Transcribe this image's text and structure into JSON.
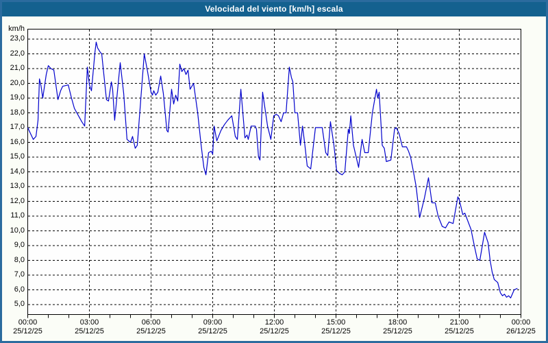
{
  "window": {
    "title": "Velocidad del viento [km/h] escala"
  },
  "colors": {
    "titlebar_bg": "#14618f",
    "titlebar_text": "#ffffff",
    "window_border": "#2b6b9e",
    "window_bg": "#fbfdf7",
    "plot_bg": "#fefefe",
    "grid": "#000000",
    "line": "#0000cc"
  },
  "chart_data": {
    "type": "line",
    "title": "Velocidad del viento [km/h] escala",
    "unit_label": "km/h",
    "xlabel": "",
    "ylabel": "km/h",
    "ylim": [
      5,
      23
    ],
    "y_tick_step": 1,
    "y_tick_labels": [
      "23,0",
      "22,0",
      "21,0",
      "20,0",
      "19,0",
      "18,0",
      "17,0",
      "16,0",
      "15,0",
      "14,0",
      "13,0",
      "12,0",
      "11,0",
      "10,0",
      "9,0",
      "8,0",
      "7,0",
      "6,0",
      "5,0"
    ],
    "x_range_hours": [
      0,
      24
    ],
    "x_major_ticks_hours": [
      0,
      3,
      6,
      9,
      12,
      15,
      18,
      21,
      24
    ],
    "x_minor_tick_every_hours": 1,
    "x_tick_labels": [
      {
        "time": "00:00",
        "date": "25/12/25"
      },
      {
        "time": "03:00",
        "date": "25/12/25"
      },
      {
        "time": "06:00",
        "date": "25/12/25"
      },
      {
        "time": "09:00",
        "date": "25/12/25"
      },
      {
        "time": "12:00",
        "date": "25/12/25"
      },
      {
        "time": "15:00",
        "date": "25/12/25"
      },
      {
        "time": "18:00",
        "date": "25/12/25"
      },
      {
        "time": "21:00",
        "date": "25/12/25"
      },
      {
        "time": "00:00",
        "date": "26/12/25"
      }
    ],
    "grid": "dashed",
    "legend": "none",
    "series": [
      {
        "name": "Velocidad del viento [km/h]",
        "color": "#0000cc",
        "points": [
          [
            0.0,
            17.0
          ],
          [
            0.1,
            16.7
          ],
          [
            0.27,
            16.2
          ],
          [
            0.4,
            16.4
          ],
          [
            0.5,
            17.5
          ],
          [
            0.57,
            20.3
          ],
          [
            0.65,
            19.8
          ],
          [
            0.73,
            19.0
          ],
          [
            0.9,
            20.6
          ],
          [
            1.0,
            21.2
          ],
          [
            1.13,
            21.0
          ],
          [
            1.27,
            20.9
          ],
          [
            1.4,
            19.6
          ],
          [
            1.47,
            18.9
          ],
          [
            1.6,
            19.5
          ],
          [
            1.7,
            19.8
          ],
          [
            1.97,
            19.9
          ],
          [
            2.13,
            19.0
          ],
          [
            2.27,
            18.3
          ],
          [
            2.43,
            17.9
          ],
          [
            2.63,
            17.4
          ],
          [
            2.77,
            17.1
          ],
          [
            2.9,
            21.1
          ],
          [
            3.0,
            19.9
          ],
          [
            3.1,
            19.5
          ],
          [
            3.27,
            22.1
          ],
          [
            3.33,
            22.8
          ],
          [
            3.4,
            22.4
          ],
          [
            3.53,
            22.1
          ],
          [
            3.6,
            22.0
          ],
          [
            3.83,
            18.9
          ],
          [
            3.93,
            18.8
          ],
          [
            4.07,
            20.1
          ],
          [
            4.13,
            19.6
          ],
          [
            4.23,
            17.5
          ],
          [
            4.5,
            21.4
          ],
          [
            4.67,
            19.3
          ],
          [
            4.83,
            16.2
          ],
          [
            5.0,
            16.0
          ],
          [
            5.1,
            16.4
          ],
          [
            5.23,
            15.6
          ],
          [
            5.33,
            15.8
          ],
          [
            5.67,
            22.0
          ],
          [
            5.83,
            20.8
          ],
          [
            6.0,
            19.4
          ],
          [
            6.07,
            19.2
          ],
          [
            6.13,
            19.5
          ],
          [
            6.23,
            19.2
          ],
          [
            6.33,
            19.4
          ],
          [
            6.47,
            20.5
          ],
          [
            6.6,
            19.3
          ],
          [
            6.77,
            16.8
          ],
          [
            6.83,
            16.7
          ],
          [
            7.0,
            19.6
          ],
          [
            7.1,
            18.6
          ],
          [
            7.2,
            19.2
          ],
          [
            7.3,
            18.8
          ],
          [
            7.4,
            21.3
          ],
          [
            7.5,
            20.8
          ],
          [
            7.6,
            21.0
          ],
          [
            7.7,
            20.6
          ],
          [
            7.8,
            20.9
          ],
          [
            7.9,
            19.6
          ],
          [
            8.07,
            20.0
          ],
          [
            8.27,
            18.0
          ],
          [
            8.43,
            15.9
          ],
          [
            8.57,
            14.3
          ],
          [
            8.67,
            13.8
          ],
          [
            8.8,
            15.3
          ],
          [
            8.93,
            15.4
          ],
          [
            9.0,
            15.2
          ],
          [
            9.07,
            17.1
          ],
          [
            9.2,
            16.1
          ],
          [
            9.4,
            16.8
          ],
          [
            9.57,
            17.2
          ],
          [
            9.73,
            17.5
          ],
          [
            9.93,
            17.8
          ],
          [
            10.1,
            16.4
          ],
          [
            10.2,
            16.2
          ],
          [
            10.37,
            19.6
          ],
          [
            10.57,
            16.3
          ],
          [
            10.67,
            16.5
          ],
          [
            10.73,
            16.2
          ],
          [
            10.87,
            17.1
          ],
          [
            11.07,
            17.1
          ],
          [
            11.13,
            16.9
          ],
          [
            11.23,
            15.0
          ],
          [
            11.3,
            14.8
          ],
          [
            11.43,
            19.4
          ],
          [
            11.67,
            17.1
          ],
          [
            11.83,
            16.2
          ],
          [
            11.97,
            17.8
          ],
          [
            12.1,
            17.9
          ],
          [
            12.2,
            17.8
          ],
          [
            12.33,
            17.4
          ],
          [
            12.45,
            18.0
          ],
          [
            12.57,
            18.0
          ],
          [
            12.73,
            21.1
          ],
          [
            12.83,
            20.4
          ],
          [
            12.9,
            20.1
          ],
          [
            13.0,
            18.0
          ],
          [
            13.13,
            18.0
          ],
          [
            13.27,
            15.8
          ],
          [
            13.37,
            17.1
          ],
          [
            13.47,
            16.0
          ],
          [
            13.6,
            14.4
          ],
          [
            13.77,
            14.2
          ],
          [
            14.0,
            17.0
          ],
          [
            14.33,
            17.0
          ],
          [
            14.5,
            15.3
          ],
          [
            14.6,
            15.1
          ],
          [
            14.73,
            17.4
          ],
          [
            14.9,
            15.8
          ],
          [
            15.03,
            14.1
          ],
          [
            15.17,
            13.9
          ],
          [
            15.3,
            13.8
          ],
          [
            15.43,
            14.0
          ],
          [
            15.6,
            16.9
          ],
          [
            15.65,
            16.6
          ],
          [
            15.72,
            17.8
          ],
          [
            15.85,
            15.8
          ],
          [
            15.95,
            15.2
          ],
          [
            16.1,
            14.3
          ],
          [
            16.27,
            16.2
          ],
          [
            16.4,
            15.3
          ],
          [
            16.57,
            15.3
          ],
          [
            16.77,
            18.0
          ],
          [
            16.97,
            19.6
          ],
          [
            17.03,
            19.0
          ],
          [
            17.1,
            19.4
          ],
          [
            17.25,
            15.8
          ],
          [
            17.35,
            15.6
          ],
          [
            17.45,
            14.7
          ],
          [
            17.67,
            14.8
          ],
          [
            17.85,
            16.9
          ],
          [
            17.93,
            17.0
          ],
          [
            18.07,
            16.6
          ],
          [
            18.23,
            15.7
          ],
          [
            18.43,
            15.7
          ],
          [
            18.53,
            15.4
          ],
          [
            18.63,
            15.0
          ],
          [
            18.77,
            14.0
          ],
          [
            18.9,
            13.0
          ],
          [
            19.07,
            10.9
          ],
          [
            19.3,
            12.2
          ],
          [
            19.5,
            13.6
          ],
          [
            19.67,
            11.9
          ],
          [
            19.83,
            11.9
          ],
          [
            19.97,
            11.0
          ],
          [
            20.17,
            10.3
          ],
          [
            20.33,
            10.2
          ],
          [
            20.5,
            10.6
          ],
          [
            20.7,
            10.5
          ],
          [
            20.93,
            12.3
          ],
          [
            21.0,
            12.1
          ],
          [
            21.17,
            11.1
          ],
          [
            21.27,
            11.2
          ],
          [
            21.57,
            10.1
          ],
          [
            21.73,
            9.0
          ],
          [
            21.87,
            8.1
          ],
          [
            22.0,
            8.0
          ],
          [
            22.23,
            9.9
          ],
          [
            22.4,
            9.2
          ],
          [
            22.5,
            8.0
          ],
          [
            22.6,
            7.2
          ],
          [
            22.7,
            6.7
          ],
          [
            22.87,
            6.5
          ],
          [
            23.0,
            5.8
          ],
          [
            23.1,
            5.6
          ],
          [
            23.2,
            5.7
          ],
          [
            23.3,
            5.5
          ],
          [
            23.4,
            5.6
          ],
          [
            23.5,
            5.45
          ],
          [
            23.67,
            6.0
          ],
          [
            23.83,
            6.1
          ]
        ]
      }
    ]
  }
}
